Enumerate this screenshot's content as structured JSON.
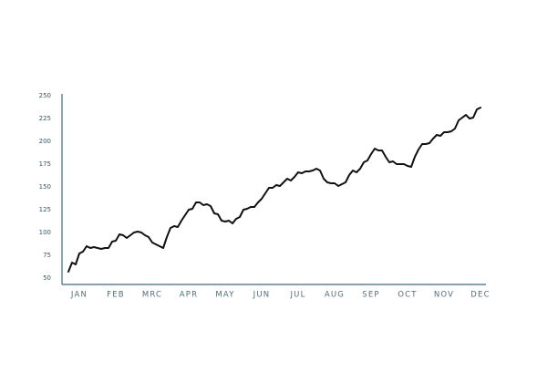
{
  "chart_data": {
    "type": "line",
    "categories": [
      null,
      null,
      null,
      "JAN",
      null,
      null,
      null,
      null,
      null,
      null,
      null,
      null,
      null,
      "FEB",
      null,
      null,
      null,
      null,
      null,
      null,
      null,
      null,
      null,
      "MRC",
      null,
      null,
      null,
      null,
      null,
      null,
      null,
      null,
      null,
      "APR",
      null,
      null,
      null,
      null,
      null,
      null,
      null,
      null,
      null,
      "MAY",
      null,
      null,
      null,
      null,
      null,
      null,
      null,
      null,
      null,
      "JUN",
      null,
      null,
      null,
      null,
      null,
      null,
      null,
      null,
      null,
      "JUL",
      null,
      null,
      null,
      null,
      null,
      null,
      null,
      null,
      null,
      "AUG",
      null,
      null,
      null,
      null,
      null,
      null,
      null,
      null,
      null,
      "SEP",
      null,
      null,
      null,
      null,
      null,
      null,
      null,
      null,
      null,
      "OCT",
      null,
      null,
      null,
      null,
      null,
      null,
      null,
      null,
      null,
      "NOV",
      null,
      null,
      null,
      null,
      null,
      null,
      null,
      null,
      null,
      "DEC"
    ],
    "values": [
      57,
      67,
      65,
      77,
      79,
      85,
      83,
      84,
      83,
      82,
      83,
      83,
      90,
      91,
      98,
      97,
      94,
      97,
      100,
      101,
      100,
      97,
      95,
      89,
      87,
      85,
      83,
      95,
      105,
      107,
      106,
      113,
      119,
      125,
      126,
      133,
      133,
      130,
      131,
      129,
      121,
      120,
      113,
      112,
      113,
      110,
      115,
      117,
      125,
      126,
      128,
      128,
      133,
      137,
      143,
      149,
      149,
      152,
      151,
      155,
      159,
      157,
      161,
      166,
      165,
      167,
      167,
      168,
      170,
      168,
      159,
      155,
      154,
      154,
      151,
      153,
      155,
      163,
      168,
      166,
      170,
      177,
      179,
      186,
      192,
      190,
      190,
      183,
      177,
      178,
      175,
      175,
      175,
      173,
      172,
      183,
      191,
      197,
      197,
      198,
      203,
      207,
      206,
      210,
      210,
      211,
      214,
      223,
      226,
      229,
      225,
      226,
      235,
      237
    ],
    "color": "#111111",
    "ylim": [
      50,
      250
    ],
    "yticks": [
      50,
      75,
      100,
      125,
      150,
      175,
      200,
      225,
      250
    ]
  }
}
